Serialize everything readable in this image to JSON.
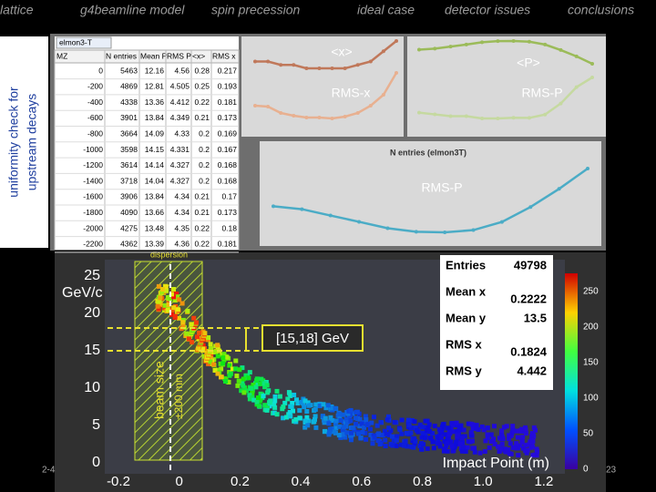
{
  "nav": [
    "lattice",
    "g4beamline model",
    "spin precession",
    "ideal case",
    "detector issues",
    "conclusions"
  ],
  "side_title": [
    "uniformity check for",
    "upstream decays"
  ],
  "spreadsheet": {
    "sheet": "elmon3-T",
    "corner": "MZ",
    "header": [
      "N entries",
      "Mean P",
      "RMS P",
      "<x>",
      "RMS x"
    ],
    "rows": [
      [
        0,
        5463,
        12.16,
        4.56,
        0.28,
        0.217
      ],
      [
        -200,
        4869,
        12.81,
        4.505,
        0.25,
        0.193
      ],
      [
        -400,
        4338,
        13.36,
        4.412,
        0.22,
        0.181
      ],
      [
        -600,
        3901,
        13.84,
        4.349,
        0.21,
        0.173
      ],
      [
        -800,
        3664,
        14.09,
        4.33,
        0.2,
        0.169
      ],
      [
        -1000,
        3598,
        14.15,
        4.331,
        0.2,
        0.167
      ],
      [
        -1200,
        3614,
        14.14,
        4.327,
        0.2,
        0.168
      ],
      [
        -1400,
        3718,
        14.04,
        4.327,
        0.2,
        0.168
      ],
      [
        -1600,
        3906,
        13.84,
        4.34,
        0.21,
        0.17
      ],
      [
        -1800,
        4090,
        13.66,
        4.34,
        0.21,
        0.173
      ],
      [
        -2000,
        4275,
        13.48,
        4.35,
        0.22,
        0.18
      ],
      [
        -2200,
        4362,
        13.39,
        4.36,
        0.22,
        0.181
      ]
    ]
  },
  "mini_charts": {
    "x_mean_label": "<x>",
    "x_rms_label": "RMS-x",
    "p_mean_label": "<P>",
    "p_rms_label": "RMS-P",
    "entries_title": "N entries (elmon3T)",
    "entries_note": "RMS-P"
  },
  "histogram": {
    "dispersion": "dispersion",
    "y_unit": "GeV/c",
    "yticks": [
      "25",
      "20",
      "15",
      "10",
      "5",
      "0"
    ],
    "xticks": [
      "-0.2",
      "0",
      "0.2",
      "0.4",
      "0.6",
      "0.8",
      "1.0",
      "1.2"
    ],
    "x_title": "Impact Point (m)",
    "beam_label": [
      "beam size",
      "±200 mm"
    ],
    "band_label": "[15,18] GeV",
    "stats": [
      [
        "Entries",
        "49798"
      ],
      [
        "Mean x",
        "0.2222"
      ],
      [
        "Mean y",
        "13.5"
      ],
      [
        "RMS x",
        "0.1824"
      ],
      [
        "RMS y",
        "4.442"
      ]
    ],
    "colorbar_ticks": [
      "250",
      "200",
      "150",
      "100",
      "50",
      "0"
    ]
  },
  "footer": {
    "left": "2-4",
    "page": "23"
  }
}
